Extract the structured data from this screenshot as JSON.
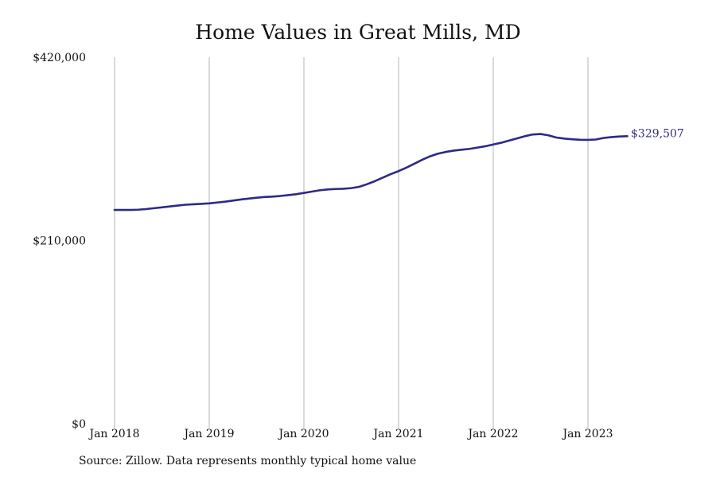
{
  "chart_data": {
    "type": "line",
    "title": "Home Values in Great Mills, MD",
    "xlabel": "",
    "ylabel": "",
    "x_ticks": [
      "Jan 2018",
      "Jan 2019",
      "Jan 2020",
      "Jan 2021",
      "Jan 2022",
      "Jan 2023"
    ],
    "y_ticks": [
      "$0",
      "$210,000",
      "$420,000"
    ],
    "ylim": [
      0,
      420000
    ],
    "grid": "vertical",
    "line_color": "#2e2a86",
    "grid_color": "#b5b5b5",
    "series": [
      {
        "x": [
          "2018-01",
          "2018-02",
          "2018-03",
          "2018-04",
          "2018-05",
          "2018-06",
          "2018-07",
          "2018-08",
          "2018-09",
          "2018-10",
          "2018-11",
          "2018-12",
          "2019-01",
          "2019-02",
          "2019-03",
          "2019-04",
          "2019-05",
          "2019-06",
          "2019-07",
          "2019-08",
          "2019-09",
          "2019-10",
          "2019-11",
          "2019-12",
          "2020-01",
          "2020-02",
          "2020-03",
          "2020-04",
          "2020-05",
          "2020-06",
          "2020-07",
          "2020-08",
          "2020-09",
          "2020-10",
          "2020-11",
          "2020-12",
          "2021-01",
          "2021-02",
          "2021-03",
          "2021-04",
          "2021-05",
          "2021-06",
          "2021-07",
          "2021-08",
          "2021-09",
          "2021-10",
          "2021-11",
          "2021-12",
          "2022-01",
          "2022-02",
          "2022-03",
          "2022-04",
          "2022-05",
          "2022-06",
          "2022-07",
          "2022-08",
          "2022-09",
          "2022-10",
          "2022-11",
          "2022-12",
          "2023-01",
          "2023-02",
          "2023-03",
          "2023-04",
          "2023-05",
          "2023-06"
        ],
        "values": [
          245000,
          245000,
          245000,
          245300,
          246000,
          247000,
          248000,
          249000,
          250000,
          251000,
          251500,
          252000,
          252500,
          253500,
          254500,
          255700,
          257000,
          258000,
          259000,
          259800,
          260300,
          261000,
          262000,
          263000,
          264500,
          266000,
          267500,
          268500,
          269000,
          269300,
          270000,
          271500,
          274500,
          278000,
          282000,
          286000,
          289500,
          293500,
          298000,
          302500,
          306500,
          309500,
          311500,
          313000,
          314000,
          315000,
          316500,
          318000,
          320000,
          322000,
          324500,
          327000,
          329500,
          331500,
          332000,
          330500,
          328000,
          326800,
          326000,
          325400,
          325300,
          325700,
          327500,
          328500,
          329200,
          329507
        ]
      }
    ],
    "end_label": "$329,507"
  },
  "source_note": "Source: Zillow. Data represents monthly typical home value"
}
